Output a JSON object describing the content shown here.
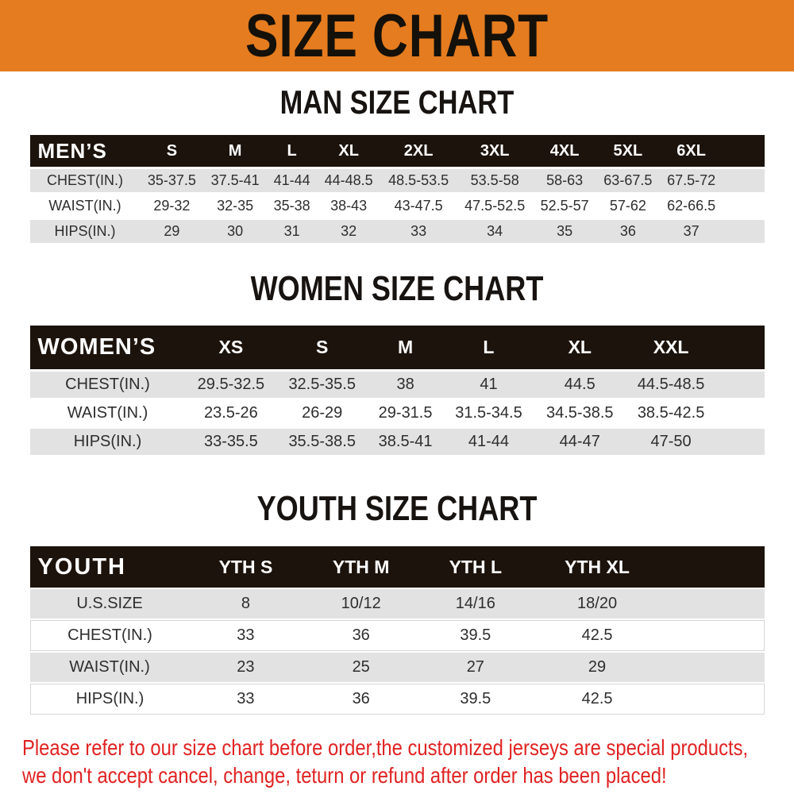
{
  "banner": {
    "title": "SIZE CHART",
    "bg_color": "#E57C1F",
    "text_color": "#14100A"
  },
  "colors": {
    "table_header_bg": "#1C130C",
    "row_stripe": "#E2E2E2",
    "footer_text": "#E02222"
  },
  "sections": [
    {
      "heading": "MAN SIZE CHART",
      "table": {
        "header_label": "MEN’S",
        "columns": [
          "S",
          "M",
          "L",
          "XL",
          "2XL",
          "3XL",
          "4XL",
          "5XL",
          "6XL"
        ],
        "rows": [
          {
            "label": "CHEST(IN.)",
            "values": [
              "35-37.5",
              "37.5-41",
              "41-44",
              "44-48.5",
              "48.5-53.5",
              "53.5-58",
              "58-63",
              "63-67.5",
              "67.5-72"
            ]
          },
          {
            "label": "WAIST(IN.)",
            "values": [
              "29-32",
              "32-35",
              "35-38",
              "38-43",
              "43-47.5",
              "47.5-52.5",
              "52.5-57",
              "57-62",
              "62-66.5"
            ]
          },
          {
            "label": "HIPS(IN.)",
            "values": [
              "29",
              "30",
              "31",
              "32",
              "33",
              "34",
              "35",
              "36",
              "37"
            ]
          }
        ]
      }
    },
    {
      "heading": "WOMEN SIZE CHART",
      "table": {
        "header_label": "WOMEN’S",
        "columns": [
          "XS",
          "S",
          "M",
          "L",
          "XL",
          "XXL"
        ],
        "rows": [
          {
            "label": "CHEST(IN.)",
            "values": [
              "29.5-32.5",
              "32.5-35.5",
              "38",
              "41",
              "44.5",
              "44.5-48.5"
            ]
          },
          {
            "label": "WAIST(IN.)",
            "values": [
              "23.5-26",
              "26-29",
              "29-31.5",
              "31.5-34.5",
              "34.5-38.5",
              "38.5-42.5"
            ]
          },
          {
            "label": "HIPS(IN.)",
            "values": [
              "33-35.5",
              "35.5-38.5",
              "38.5-41",
              "41-44",
              "44-47",
              "47-50"
            ]
          }
        ]
      }
    },
    {
      "heading": "YOUTH SIZE CHART",
      "table": {
        "header_label": "YOUTH",
        "columns": [
          "YTH S",
          "YTH M",
          "YTH L",
          "YTH XL"
        ],
        "rows": [
          {
            "label": "U.S.SIZE",
            "values": [
              "8",
              "10/12",
              "14/16",
              "18/20"
            ]
          },
          {
            "label": "CHEST(IN.)",
            "values": [
              "33",
              "36",
              "39.5",
              "42.5"
            ]
          },
          {
            "label": "WAIST(IN.)",
            "values": [
              "23",
              "25",
              "27",
              "29"
            ]
          },
          {
            "label": "HIPS(IN.)",
            "values": [
              "33",
              "36",
              "39.5",
              "42.5"
            ]
          }
        ]
      }
    }
  ],
  "footer": {
    "lines": [
      "Please refer to our size chart before order,the customized jerseys are special products,",
      "we don't accept cancel, change, teturn or refund after order has been placed!"
    ]
  }
}
